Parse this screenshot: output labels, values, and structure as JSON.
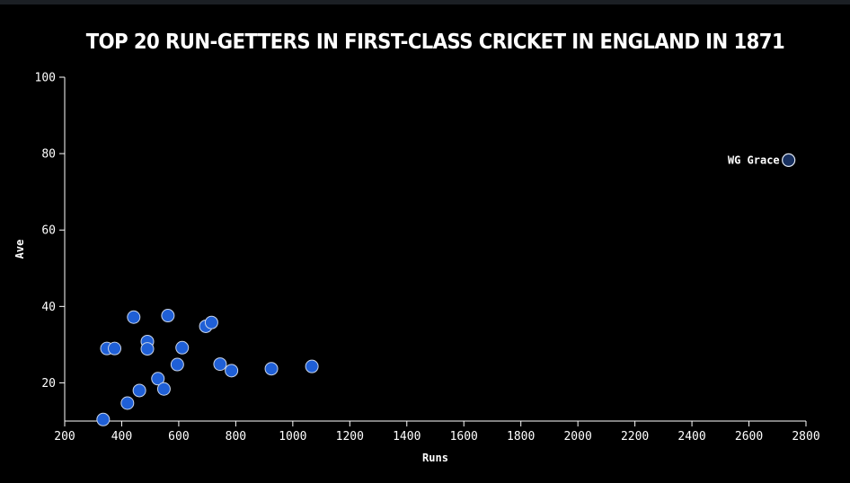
{
  "chart_data": {
    "type": "scatter",
    "title": "TOP 20 RUN-GETTERS IN FIRST-CLASS CRICKET IN ENGLAND IN 1871",
    "xlabel": "Runs",
    "ylabel": "Ave",
    "xlim": [
      200,
      2800
    ],
    "ylim": [
      10,
      100
    ],
    "xticks": [
      200,
      400,
      600,
      800,
      1000,
      1200,
      1400,
      1600,
      1800,
      2000,
      2200,
      2400,
      2600,
      2800
    ],
    "yticks": [
      20,
      40,
      60,
      80,
      100
    ],
    "grid": false,
    "colors": {
      "point_fill": "#1f5fd6",
      "point_stroke": "#c8d4ea",
      "outlier_fill": "#18305f",
      "background": "#000000",
      "text": "#ffffff"
    },
    "points": [
      {
        "x": 335,
        "y": 10.4
      },
      {
        "x": 348,
        "y": 29.0
      },
      {
        "x": 375,
        "y": 29.0
      },
      {
        "x": 420,
        "y": 14.7
      },
      {
        "x": 442,
        "y": 37.2
      },
      {
        "x": 462,
        "y": 18.0
      },
      {
        "x": 490,
        "y": 30.8
      },
      {
        "x": 490,
        "y": 28.9
      },
      {
        "x": 527,
        "y": 21.1
      },
      {
        "x": 548,
        "y": 18.4
      },
      {
        "x": 562,
        "y": 37.6
      },
      {
        "x": 595,
        "y": 24.8
      },
      {
        "x": 612,
        "y": 29.2
      },
      {
        "x": 695,
        "y": 34.8
      },
      {
        "x": 715,
        "y": 35.8
      },
      {
        "x": 745,
        "y": 24.9
      },
      {
        "x": 785,
        "y": 23.2
      },
      {
        "x": 925,
        "y": 23.7
      },
      {
        "x": 1067,
        "y": 24.3
      },
      {
        "x": 2739,
        "y": 78.3,
        "label": "WG Grace"
      }
    ]
  }
}
